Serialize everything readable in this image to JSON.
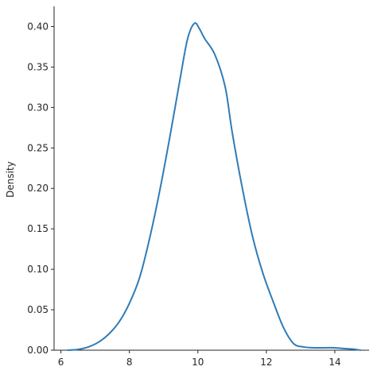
{
  "chart_data": {
    "type": "line",
    "title": "",
    "xlabel": "",
    "ylabel": "Density",
    "xlim": [
      5.8,
      15.0
    ],
    "ylim": [
      0,
      0.425
    ],
    "xticks": [
      6,
      8,
      10,
      12,
      14
    ],
    "yticks": [
      0.0,
      0.05,
      0.1,
      0.15,
      0.2,
      0.25,
      0.3,
      0.35,
      0.4
    ],
    "ytick_labels": [
      "0.00",
      "0.05",
      "0.10",
      "0.15",
      "0.20",
      "0.25",
      "0.30",
      "0.35",
      "0.40"
    ],
    "xtick_labels": [
      "6",
      "8",
      "10",
      "12",
      "14"
    ],
    "grid": false,
    "series": [
      {
        "color": "#2f7cb8",
        "x": [
          6.2,
          6.5,
          6.8,
          7.1,
          7.4,
          7.7,
          8.0,
          8.3,
          8.6,
          8.9,
          9.2,
          9.5,
          9.7,
          9.9,
          10.05,
          10.2,
          10.5,
          10.8,
          11.0,
          11.3,
          11.6,
          11.9,
          12.2,
          12.5,
          12.8,
          13.1,
          13.4,
          13.7,
          14.0,
          14.3,
          14.6,
          14.75
        ],
        "y": [
          0.0,
          0.001,
          0.004,
          0.01,
          0.02,
          0.035,
          0.058,
          0.09,
          0.14,
          0.2,
          0.268,
          0.34,
          0.385,
          0.404,
          0.397,
          0.385,
          0.365,
          0.325,
          0.27,
          0.2,
          0.14,
          0.095,
          0.06,
          0.028,
          0.008,
          0.004,
          0.003,
          0.003,
          0.003,
          0.002,
          0.001,
          0.0
        ]
      }
    ]
  }
}
